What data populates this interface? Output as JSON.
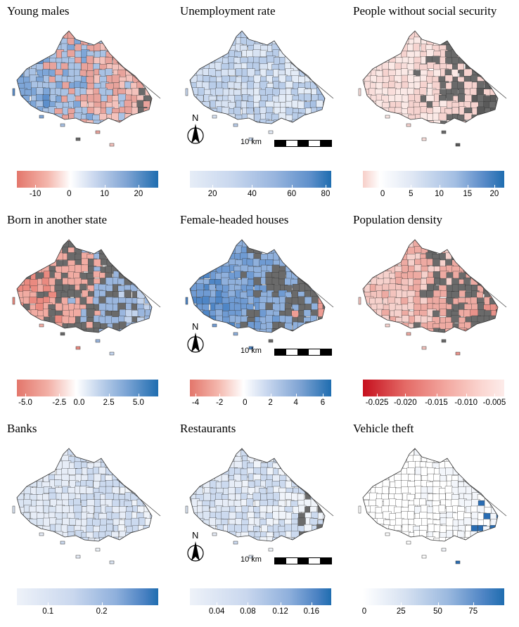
{
  "north_label": "N",
  "scale_label": "10 km",
  "panels": [
    {
      "title": "Young males",
      "ticks": [
        "-10",
        "0",
        "10",
        "20"
      ],
      "tick_pos": [
        0.13,
        0.37,
        0.62,
        0.86
      ],
      "gradient": "linear-gradient(to right,#e3766b 0%,#f4b7ad 22%,#ffffff 38%,#c9d7ee 55%,#7ea3d3 78%,#1f6db0 100%)",
      "palette": [
        "#5d8fcb",
        "#7ea6d8",
        "#a9c2e4",
        "#e8a39c",
        "#f4c2bc",
        "#6a6a6a"
      ]
    },
    {
      "title": "Unemployment rate",
      "ticks": [
        "20",
        "40",
        "60",
        "80"
      ],
      "tick_pos": [
        0.16,
        0.44,
        0.72,
        0.96
      ],
      "gradient": "linear-gradient(to right,#e6edf7 0%,#c8d7ee 30%,#98b5de 60%,#5f90cb 85%,#1f6db0 100%)",
      "palette": [
        "#c8d8ef",
        "#d8e3f3",
        "#b9cde9",
        "#e4ecf7",
        "#a8c1e4"
      ]
    },
    {
      "title": "People without social security",
      "ticks": [
        "0",
        "5",
        "10",
        "15",
        "20"
      ],
      "tick_pos": [
        0.14,
        0.34,
        0.54,
        0.74,
        0.93
      ],
      "gradient": "linear-gradient(to right,#f7cfc9 0%,#ffffff 12%,#dfe7f4 35%,#a4bfe3 65%,#5b8cc9 85%,#1f6db0 100%)",
      "palette": [
        "#f9dedb",
        "#fbe9e6",
        "#f6d3cf",
        "#6a6a6a",
        "#5a5a5a"
      ]
    },
    {
      "title": "Born in another state",
      "ticks": [
        "-5.0",
        "-2.5",
        "0.0",
        "2.5",
        "5.0"
      ],
      "tick_pos": [
        0.06,
        0.3,
        0.44,
        0.65,
        0.86
      ],
      "gradient": "linear-gradient(to right,#e3766b 0%,#f2b0a6 22%,#ffffff 42%,#c2d4ec 58%,#7aa3d4 78%,#1f6db0 100%)",
      "palette": [
        "#ea8a80",
        "#f1aba2",
        "#6a6a6a",
        "#9ab6de",
        "#c2d3ec"
      ]
    },
    {
      "title": "Female-headed houses",
      "ticks": [
        "-4",
        "-2",
        "0",
        "2",
        "4",
        "6"
      ],
      "tick_pos": [
        0.04,
        0.21,
        0.39,
        0.57,
        0.75,
        0.94
      ],
      "gradient": "linear-gradient(to right,#e3766b 0%,#f4b7ad 20%,#ffffff 38%,#c7d6ee 55%,#7ea3d3 78%,#1f6db0 100%)",
      "palette": [
        "#4f86c6",
        "#6f9bd3",
        "#8fb0dc",
        "#6a6a6a",
        "#ee9d94"
      ]
    },
    {
      "title": "Population density",
      "ticks": [
        "-0.025",
        "-0.020",
        "-0.015",
        "-0.010",
        "-0.005"
      ],
      "tick_pos": [
        0.1,
        0.3,
        0.52,
        0.73,
        0.93
      ],
      "gradient": "linear-gradient(to right,#c6101e 0%,#e46a66 30%,#f3aaa2 60%,#fbd8d3 85%,#fdecea 100%)",
      "palette": [
        "#f3c3bd",
        "#f6d1cc",
        "#eeaaa2",
        "#6a6a6a",
        "#e8928a"
      ]
    },
    {
      "title": "Banks",
      "ticks": [
        "0.1",
        "0.2"
      ],
      "tick_pos": [
        0.22,
        0.6
      ],
      "gradient": "linear-gradient(to right,#eef2f9 0%,#c9d7ee 40%,#8fb0dc 70%,#4b82c3 90%,#1f6db0 100%)",
      "palette": [
        "#dbe5f3",
        "#e7edf7",
        "#ccdaef",
        "#f0f4fa"
      ]
    },
    {
      "title": "Restaurants",
      "ticks": [
        "0.04",
        "0.08",
        "0.12",
        "0.16"
      ],
      "tick_pos": [
        0.19,
        0.41,
        0.64,
        0.86
      ],
      "gradient": "linear-gradient(to right,#eef2f9 0%,#c9d7ee 40%,#8fb0dc 70%,#4b82c3 90%,#1f6db0 100%)",
      "palette": [
        "#dbe5f3",
        "#e7edf7",
        "#ccdaef",
        "#f0f4fa",
        "#6a6a6a"
      ]
    },
    {
      "title": "Vehicle theft",
      "ticks": [
        "0",
        "25",
        "50",
        "75"
      ],
      "tick_pos": [
        0.01,
        0.27,
        0.53,
        0.78
      ],
      "gradient": "linear-gradient(to right,#ffffff 0%,#d6e1f1 30%,#9bb9df 60%,#4f85c5 85%,#1f6db0 100%)",
      "palette": [
        "#ffffff",
        "#ffffff",
        "#ffffff",
        "#f3f6fb",
        "#2a6db3"
      ]
    }
  ],
  "decorated_panels": [
    1,
    4,
    7
  ]
}
